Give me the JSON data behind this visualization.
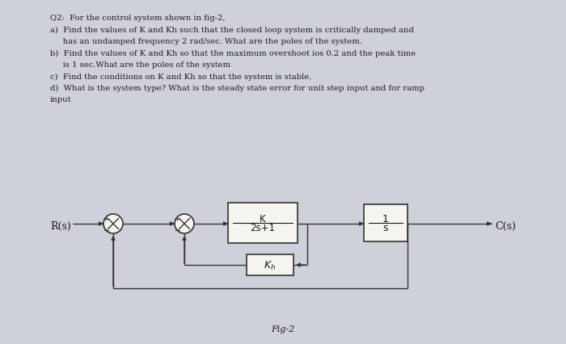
{
  "bg_color": "#cfd1da",
  "text_color": "#1a1a1a",
  "title_lines": [
    "Q2:  For the control system shown in fig-2,",
    "a)  Find the values of K and Kh such that the closed loop system is critically damped and",
    "     has an undamped frequency 2 rad/sec. What are the poles of the system.",
    "b)  Find the values of K and Kh so that the maximum overshoot ios 0.2 and the peak time",
    "     is 1 sec.What are the poles of the system",
    "c)  Find the conditions on K and Kh so that the system is stable.",
    "d)  What is the system type? What is the steady state error for unit step input and for ramp",
    "input"
  ],
  "fig_label": "Fig-2",
  "box_color": "#f5f4ef",
  "box_edge_color": "#333333",
  "arrow_color": "#333333",
  "sumjunction_color": "#333333"
}
